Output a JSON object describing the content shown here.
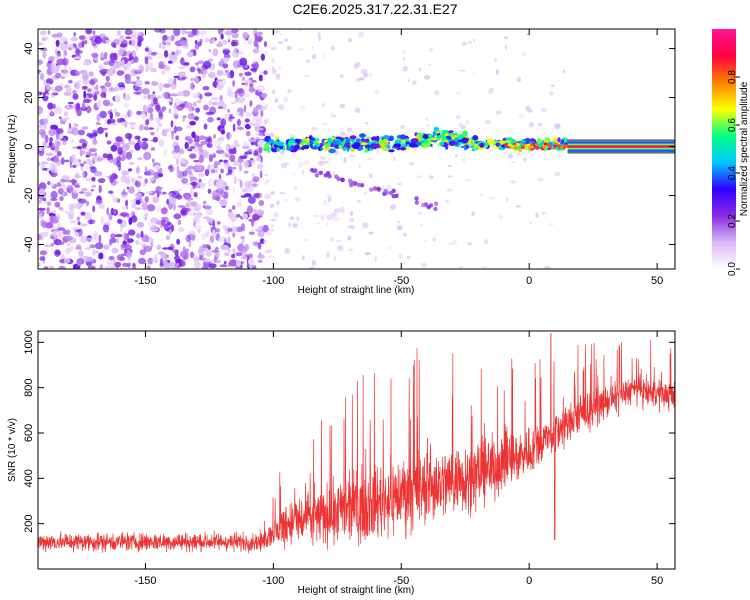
{
  "title": "C2E6.2025.317.22.31.E27",
  "chart_data": [
    {
      "type": "heatmap",
      "xlabel": "Height of straight line (km)",
      "ylabel": "Frequency (Hz)",
      "xlim": [
        -192,
        57
      ],
      "ylim": [
        -50,
        48
      ],
      "xticks": [
        -150,
        -100,
        -50,
        0,
        50
      ],
      "yticks": [
        40,
        20,
        0,
        -20,
        -40
      ],
      "colorbar": {
        "label": "Normalized spectral amplitude",
        "range": [
          0.0,
          1.0
        ],
        "ticks": [
          0.0,
          0.2,
          0.4,
          0.6,
          0.8
        ],
        "tick_labels": [
          "0.0",
          "0.2",
          "0.4",
          "0.6",
          "0.8"
        ],
        "colors": [
          "#ffffff",
          "#d8b8f8",
          "#8a2be2",
          "#3000ff",
          "#00c8ff",
          "#00ff80",
          "#ffff00",
          "#ff8000",
          "#ff0040",
          "#ff1493"
        ]
      },
      "regions": [
        {
          "name": "noise",
          "x_range": [
            -192,
            -103
          ],
          "freq_range": [
            -50,
            48
          ],
          "amplitude": 0.15
        },
        {
          "name": "sparse",
          "x_range": [
            -103,
            15
          ],
          "freq_range": [
            -50,
            48
          ],
          "amplitude": 0.05
        },
        {
          "name": "signal-band",
          "x_range": [
            -103,
            57
          ],
          "center_freq": 1,
          "width_hz": 4,
          "amplitude": [
            0.3,
            0.85
          ]
        }
      ]
    },
    {
      "type": "line",
      "xlabel": "Height of straight line (km)",
      "ylabel": "SNR (10 * v/v)",
      "xlim": [
        -192,
        57
      ],
      "ylim": [
        0,
        1050
      ],
      "xticks": [
        -150,
        -100,
        -50,
        0,
        50
      ],
      "yticks": [
        200,
        400,
        600,
        800,
        1000
      ],
      "color": "#ee3333",
      "trend": [
        {
          "x": -192,
          "mean": 120,
          "spread": 60
        },
        {
          "x": -104,
          "mean": 120,
          "spread": 60
        },
        {
          "x": -95,
          "mean": 200,
          "spread": 150
        },
        {
          "x": -70,
          "mean": 260,
          "spread": 220
        },
        {
          "x": -50,
          "mean": 330,
          "spread": 250
        },
        {
          "x": -20,
          "mean": 420,
          "spread": 220
        },
        {
          "x": 0,
          "mean": 520,
          "spread": 160
        },
        {
          "x": 20,
          "mean": 680,
          "spread": 120
        },
        {
          "x": 40,
          "mean": 790,
          "spread": 90
        },
        {
          "x": 57,
          "mean": 760,
          "spread": 90
        }
      ],
      "peaks": [
        {
          "x": 8.5,
          "y": 1040
        },
        {
          "x": 10,
          "y": 130
        }
      ]
    }
  ]
}
